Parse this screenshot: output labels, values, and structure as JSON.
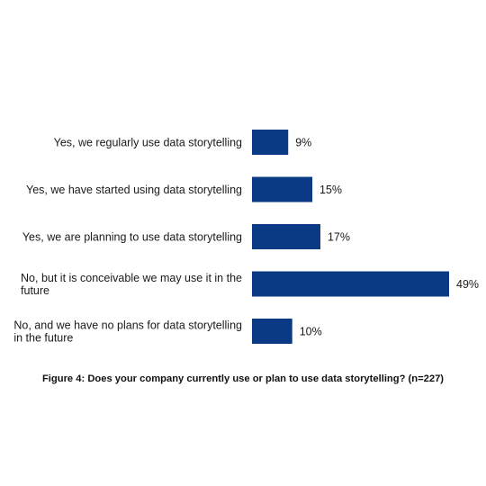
{
  "chart_data": {
    "type": "bar",
    "orientation": "horizontal",
    "categories": [
      [
        "Yes, we regularly use data storytelling"
      ],
      [
        "Yes, we have started using data storytelling"
      ],
      [
        "Yes, we are planning to use data storytelling"
      ],
      [
        "No, but it is conceivable we may use it in the",
        "future"
      ],
      [
        "No, and we have no plans for data storytelling",
        "in the future"
      ]
    ],
    "values": [
      9,
      15,
      17,
      49,
      10
    ],
    "value_labels": [
      "9%",
      "15%",
      "17%",
      "49%",
      "10%"
    ],
    "unit": "%",
    "xlim": [
      0,
      49
    ],
    "grid": false,
    "bar_color": "#0a3a84",
    "caption": "Figure 4: Does your company currently use or plan to use data storytelling? (n=227)"
  }
}
